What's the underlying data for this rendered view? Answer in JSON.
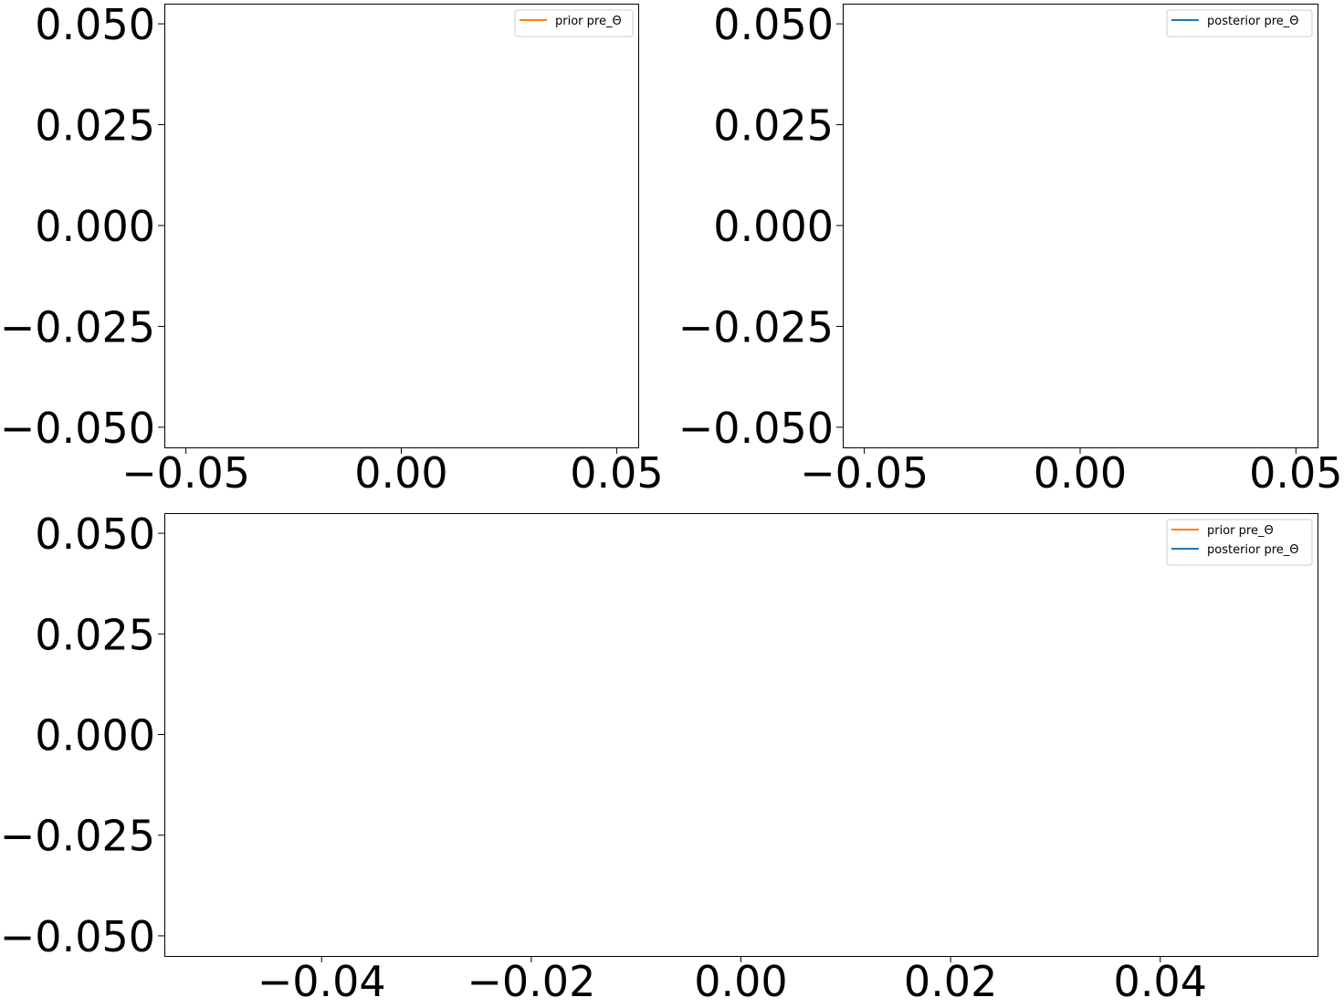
{
  "chart_data": [
    {
      "type": "line",
      "title": "",
      "xlabel": "",
      "ylabel": "",
      "xlim": [
        -0.055,
        0.055
      ],
      "ylim": [
        -0.055,
        0.055
      ],
      "xticks": [
        -0.05,
        0.0,
        0.05
      ],
      "xtick_labels": [
        "−0.05",
        "0.00",
        "0.05"
      ],
      "yticks": [
        0.05,
        0.025,
        0.0,
        -0.025,
        -0.05
      ],
      "ytick_labels": [
        "0.050",
        "0.025",
        "0.000",
        "−0.025",
        "−0.050"
      ],
      "grid": false,
      "legend_position": "top-right",
      "series": [
        {
          "name": "prior pre_Θ",
          "color": "#ff7f0e",
          "x": [],
          "y": []
        }
      ]
    },
    {
      "type": "line",
      "title": "",
      "xlabel": "",
      "ylabel": "",
      "xlim": [
        -0.055,
        0.055
      ],
      "ylim": [
        -0.055,
        0.055
      ],
      "xticks": [
        -0.05,
        0.0,
        0.05
      ],
      "xtick_labels": [
        "−0.05",
        "0.00",
        "0.05"
      ],
      "yticks": [
        0.05,
        0.025,
        0.0,
        -0.025,
        -0.05
      ],
      "ytick_labels": [
        "0.050",
        "0.025",
        "0.000",
        "−0.025",
        "−0.050"
      ],
      "grid": false,
      "legend_position": "top-right",
      "series": [
        {
          "name": "posterior pre_Θ",
          "color": "#1f77b4",
          "x": [],
          "y": []
        }
      ]
    },
    {
      "type": "line",
      "title": "",
      "xlabel": "",
      "ylabel": "",
      "xlim": [
        -0.055,
        0.055
      ],
      "ylim": [
        -0.055,
        0.055
      ],
      "xticks": [
        -0.04,
        -0.02,
        0.0,
        0.02,
        0.04
      ],
      "xtick_labels": [
        "−0.04",
        "−0.02",
        "0.00",
        "0.02",
        "0.04"
      ],
      "yticks": [
        0.05,
        0.025,
        0.0,
        -0.025,
        -0.05
      ],
      "ytick_labels": [
        "0.050",
        "0.025",
        "0.000",
        "−0.025",
        "−0.050"
      ],
      "grid": false,
      "legend_position": "top-right",
      "series": [
        {
          "name": "prior pre_Θ",
          "color": "#ff7f0e",
          "x": [],
          "y": []
        },
        {
          "name": "posterior pre_Θ",
          "color": "#1f77b4",
          "x": [],
          "y": []
        }
      ]
    }
  ]
}
